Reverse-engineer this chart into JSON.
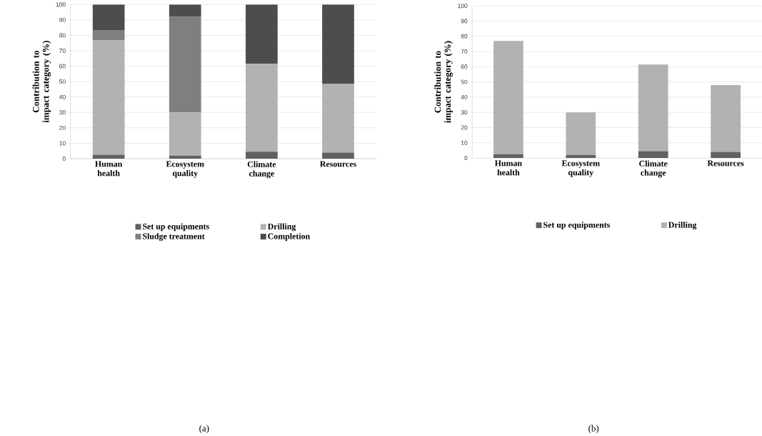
{
  "chart_data": [
    {
      "type": "bar",
      "stacked": true,
      "ylabel": "Contribution to impact category (%)",
      "categories": [
        "Human health",
        "Ecosystem quality",
        "Climate change",
        "Resources"
      ],
      "series": [
        {
          "name": "Set up equipments",
          "color": "#616161",
          "values": [
            2.5,
            2,
            4.5,
            4
          ]
        },
        {
          "name": "Drilling",
          "color": "#b2b2b2",
          "values": [
            74.5,
            28,
            57,
            44.5
          ]
        },
        {
          "name": "Sludge treatment",
          "color": "#7f7f7f",
          "values": [
            6.5,
            62,
            0,
            0
          ]
        },
        {
          "name": "Completion",
          "color": "#4d4d4d",
          "values": [
            16.5,
            8,
            38.5,
            51.5
          ]
        }
      ],
      "ylim": [
        0,
        100
      ],
      "yticks": [
        0,
        10,
        20,
        30,
        40,
        50,
        60,
        70,
        80,
        90,
        100
      ],
      "grid": "y",
      "legend": "bottom",
      "annotations": [
        "(a)"
      ]
    },
    {
      "type": "bar",
      "stacked": true,
      "ylabel": "Contribution to impact category (%)",
      "categories": [
        "Human health",
        "Ecosystem quality",
        "Climate change",
        "Resources"
      ],
      "series": [
        {
          "name": "Set up equipments",
          "color": "#616161",
          "values": [
            2.5,
            2,
            4.5,
            4
          ]
        },
        {
          "name": "Drilling",
          "color": "#b2b2b2",
          "values": [
            74.5,
            28,
            57,
            44
          ]
        }
      ],
      "ylim": [
        0,
        100
      ],
      "yticks": [
        0,
        10,
        20,
        30,
        40,
        50,
        60,
        70,
        80,
        90,
        100
      ],
      "grid": "y",
      "legend": "bottom",
      "annotations": [
        "(b)"
      ]
    }
  ]
}
